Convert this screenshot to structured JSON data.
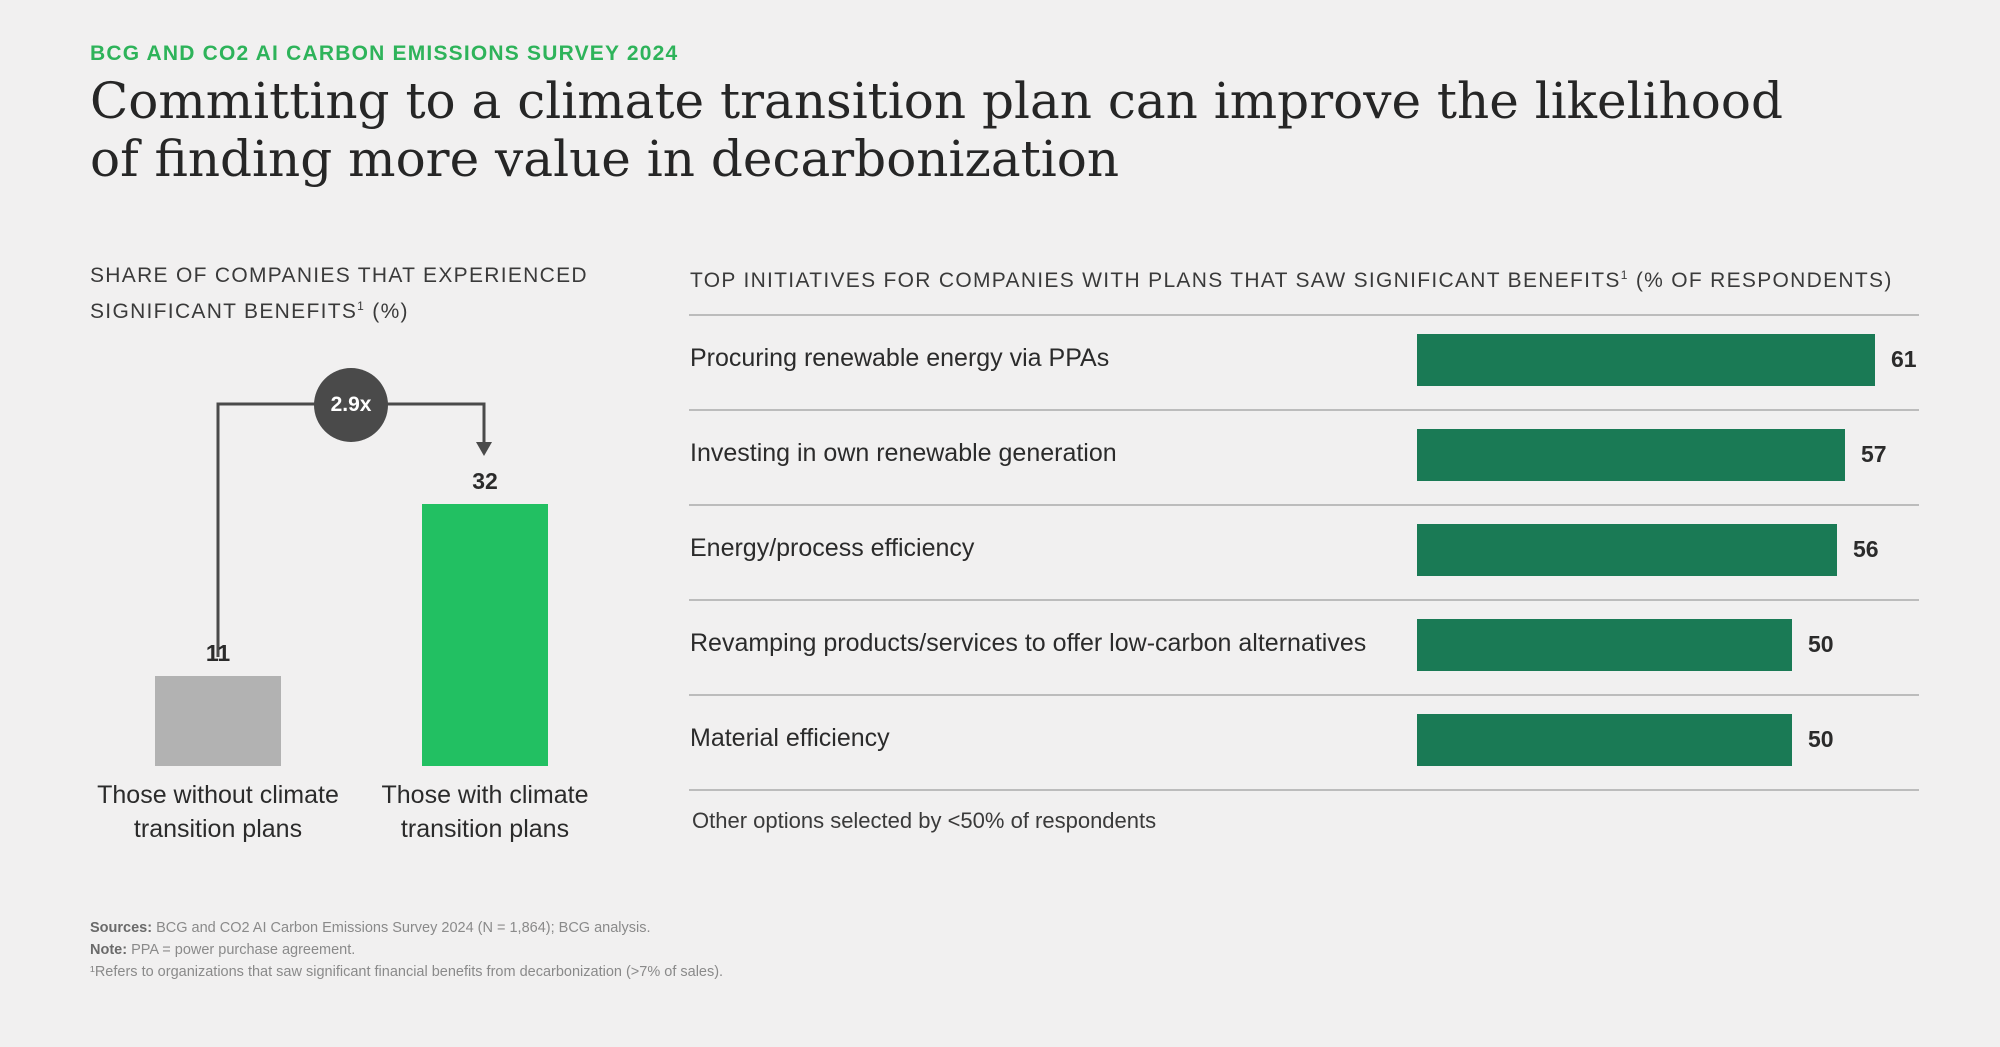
{
  "header": {
    "kicker": "BCG AND CO2 AI CARBON EMISSIONS SURVEY 2024",
    "title": "Committing to a climate transition plan can improve the likelihood of finding more value in decarbonization"
  },
  "colors": {
    "accent_green": "#2eb35a",
    "bar_with_plans": "#22c062",
    "bar_without_plans": "#b2b2b2",
    "initiative_bar": "#1a7a55",
    "multiplier_circle": "#4a4a4a",
    "background": "#f1f0f0"
  },
  "chart_data": [
    {
      "type": "bar",
      "title": "SHARE OF COMPANIES THAT EXPERIENCED SIGNIFICANT BENEFITS",
      "title_sup": "1",
      "title_suffix": "(%)",
      "categories": [
        "Those without climate transition plans",
        "Those with climate transition plans"
      ],
      "values": [
        11,
        32
      ],
      "ylim": [
        0,
        32
      ],
      "annotation": "2.9x"
    },
    {
      "type": "bar",
      "orientation": "horizontal",
      "title": "TOP INITIATIVES FOR COMPANIES WITH PLANS THAT SAW SIGNIFICANT BENEFITS",
      "title_sup": "1",
      "title_suffix": "(% OF RESPONDENTS)",
      "categories": [
        "Procuring renewable energy via PPAs",
        "Investing in own renewable generation",
        "Energy/process efficiency",
        "Revamping products/services to offer low-carbon alternatives",
        "Material efficiency"
      ],
      "values": [
        61,
        57,
        56,
        50,
        50
      ],
      "xlim": [
        0,
        61
      ],
      "note": "Other options selected by <50% of respondents"
    }
  ],
  "footer": {
    "sources_label": "Sources:",
    "sources_text": "BCG and CO2 AI Carbon Emissions Survey 2024 (N = 1,864); BCG analysis.",
    "note_label": "Note:",
    "note_text": "PPA = power purchase agreement.",
    "footnote": "¹Refers to organizations that saw significant financial benefits from decarbonization (>7% of sales)."
  }
}
